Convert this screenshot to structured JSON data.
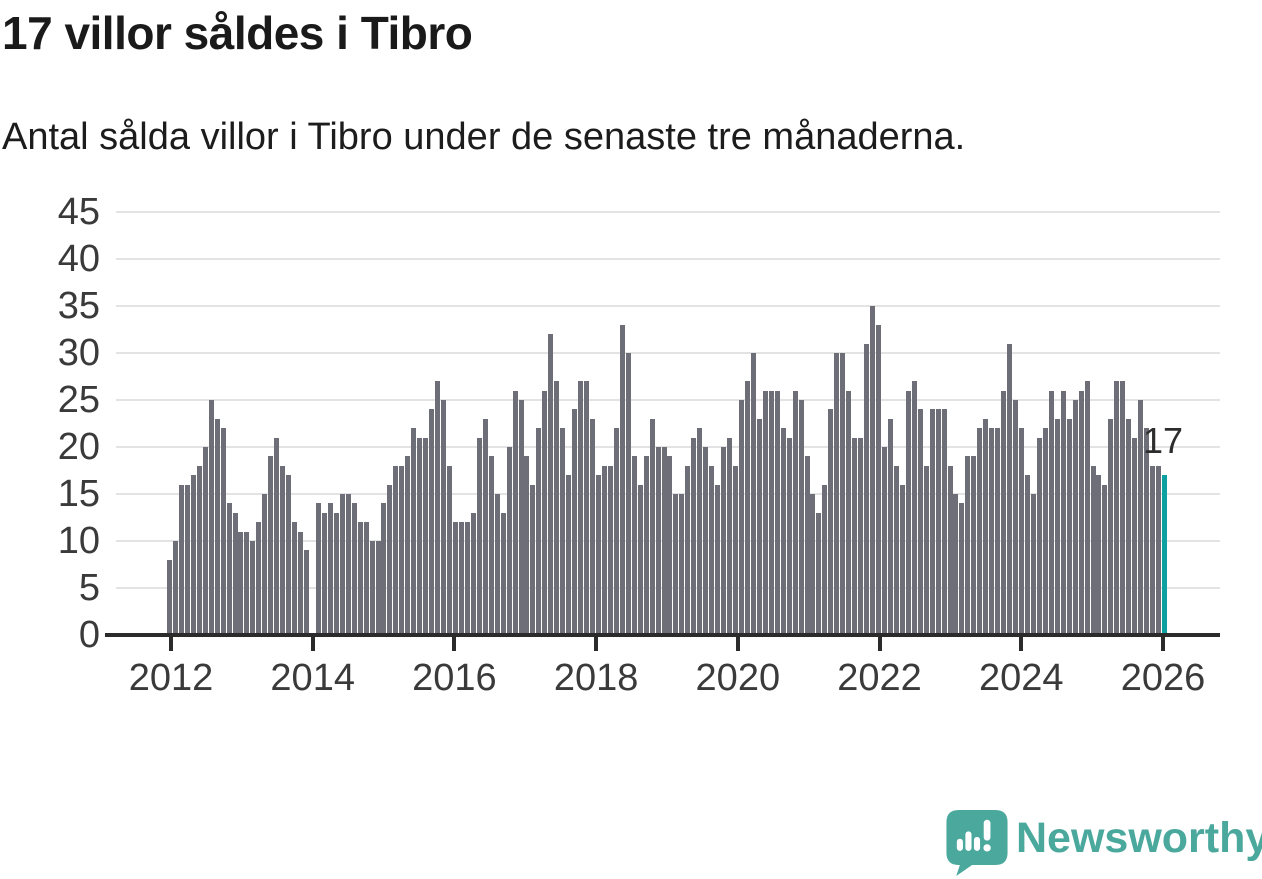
{
  "title": "17 villor såldes i Tibro",
  "subtitle": "Antal sålda villor i Tibro under de senaste tre månaderna.",
  "annotation": "17",
  "branding": {
    "name": "Newsworthy",
    "icon": "speech-bubble-bar-chart-icon",
    "color": "#4BA89D"
  },
  "colors": {
    "bar": "#6E6E78",
    "highlight": "#0AA1A0",
    "axis": "#2B2B2B",
    "grid": "#E3E3E3",
    "label": "#3A3A3A"
  },
  "chart_data": {
    "type": "bar",
    "title": "17 villor såldes i Tibro",
    "subtitle": "Antal sålda villor i Tibro under de senaste tre månaderna.",
    "unit": "sålda villor (rullande 3 månader)",
    "xlabel": "",
    "ylabel": "",
    "ylim": [
      0,
      45
    ],
    "grid": "horizontal",
    "y_ticks": [
      0,
      5,
      10,
      15,
      20,
      25,
      30,
      35,
      40,
      45
    ],
    "x_ticks": [
      "2012",
      "2014",
      "2016",
      "2018",
      "2020",
      "2022",
      "2024",
      "2026"
    ],
    "x_range_years": [
      2012,
      2026
    ],
    "bar_period": "monthly",
    "highlight_index": 167,
    "highlight_value": 17,
    "highlight_label": "17",
    "values": [
      8,
      10,
      16,
      16,
      17,
      18,
      20,
      25,
      23,
      22,
      14,
      13,
      11,
      11,
      10,
      12,
      15,
      19,
      21,
      18,
      17,
      12,
      11,
      9,
      0,
      14,
      13,
      14,
      13,
      15,
      15,
      14,
      12,
      12,
      10,
      10,
      14,
      16,
      18,
      18,
      19,
      22,
      21,
      21,
      24,
      27,
      25,
      18,
      12,
      12,
      12,
      13,
      21,
      23,
      19,
      15,
      13,
      20,
      26,
      25,
      19,
      16,
      22,
      26,
      32,
      27,
      22,
      17,
      24,
      27,
      27,
      23,
      17,
      18,
      18,
      22,
      33,
      30,
      19,
      16,
      19,
      23,
      20,
      20,
      19,
      15,
      15,
      18,
      21,
      22,
      20,
      18,
      16,
      20,
      21,
      18,
      25,
      27,
      30,
      23,
      26,
      26,
      26,
      22,
      21,
      26,
      25,
      19,
      15,
      13,
      16,
      24,
      30,
      30,
      26,
      21,
      21,
      31,
      35,
      33,
      20,
      23,
      18,
      16,
      26,
      27,
      24,
      18,
      24,
      24,
      24,
      18,
      15,
      14,
      19,
      19,
      22,
      23,
      22,
      22,
      26,
      31,
      25,
      22,
      17,
      15,
      21,
      22,
      26,
      23,
      26,
      23,
      25,
      26,
      27,
      18,
      17,
      16,
      23,
      27,
      27,
      23,
      21,
      25,
      22,
      18,
      18,
      17
    ]
  }
}
